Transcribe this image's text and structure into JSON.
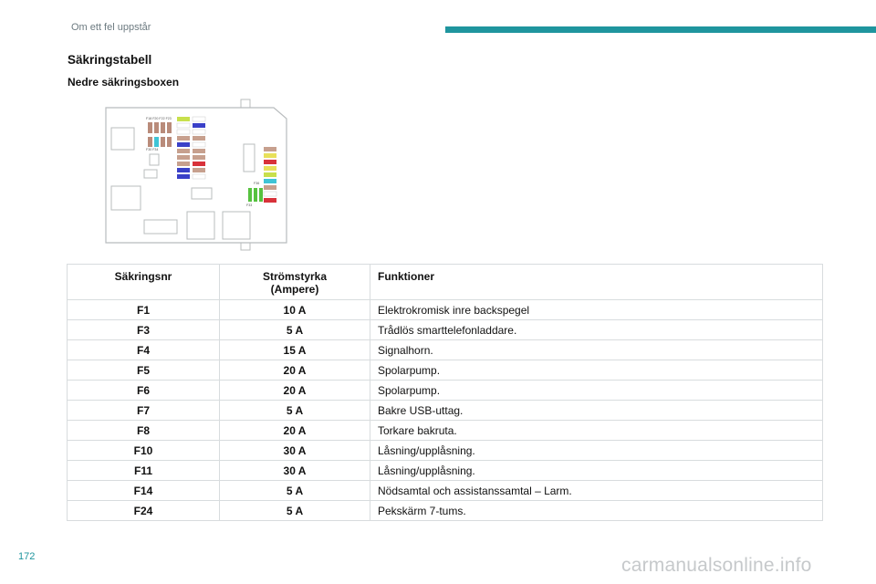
{
  "header": {
    "title": "Om ett fel uppstår",
    "bar_color": "#1f959e"
  },
  "section": {
    "title": "Säkringstabell",
    "subtitle": "Nedre säkringsboxen"
  },
  "diagram": {
    "icon": "fuse-box-diagram"
  },
  "table": {
    "headers": {
      "number": "Säkringsnr",
      "current_line1": "Strömstyrka",
      "current_line2": "(Ampere)",
      "function": "Funktioner"
    },
    "rows": [
      {
        "number": "F1",
        "current": "10 A",
        "function": "Elektrokromisk inre backspegel"
      },
      {
        "number": "F3",
        "current": "5 A",
        "function": "Trådlös smarttelefonladdare."
      },
      {
        "number": "F4",
        "current": "15 A",
        "function": "Signalhorn."
      },
      {
        "number": "F5",
        "current": "20 A",
        "function": "Spolarpump."
      },
      {
        "number": "F6",
        "current": "20 A",
        "function": "Spolarpump."
      },
      {
        "number": "F7",
        "current": "5 A",
        "function": "Bakre USB-uttag."
      },
      {
        "number": "F8",
        "current": "20 A",
        "function": "Torkare bakruta."
      },
      {
        "number": "F10",
        "current": "30 A",
        "function": "Låsning/upplåsning."
      },
      {
        "number": "F11",
        "current": "30 A",
        "function": "Låsning/upplåsning."
      },
      {
        "number": "F14",
        "current": "5 A",
        "function": "Nödsamtal och assistanssamtal – Larm."
      },
      {
        "number": "F24",
        "current": "5 A",
        "function": "Pekskärm 7-tums."
      }
    ]
  },
  "footer": {
    "page_number": "172",
    "watermark": "carmanualsonline.info"
  }
}
